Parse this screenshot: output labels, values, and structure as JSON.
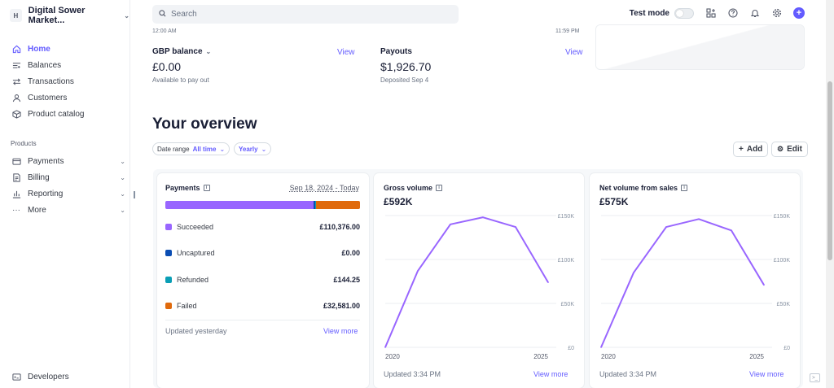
{
  "account": {
    "badge": "H",
    "name": "Digital Sower Market..."
  },
  "sidebar": {
    "primary": [
      {
        "label": "Home",
        "icon": "home-icon",
        "active": true
      },
      {
        "label": "Balances",
        "icon": "balances-icon"
      },
      {
        "label": "Transactions",
        "icon": "transactions-icon"
      },
      {
        "label": "Customers",
        "icon": "customers-icon"
      },
      {
        "label": "Product catalog",
        "icon": "product-catalog-icon"
      }
    ],
    "section_label": "Products",
    "products": [
      {
        "label": "Payments",
        "icon": "payments-icon"
      },
      {
        "label": "Billing",
        "icon": "billing-icon"
      },
      {
        "label": "Reporting",
        "icon": "reporting-icon"
      },
      {
        "label": "More",
        "icon": "more-icon"
      }
    ],
    "developers": "Developers"
  },
  "search": {
    "placeholder": "Search"
  },
  "topbar": {
    "test_mode": "Test mode"
  },
  "summary": {
    "tick_left": "12:00 AM",
    "tick_right": "11:59 PM",
    "gbp": {
      "label": "GBP balance",
      "amount": "£0.00",
      "sub": "Available to pay out",
      "view": "View"
    },
    "payouts": {
      "label": "Payouts",
      "amount": "$1,926.70",
      "sub": "Deposited Sep 4",
      "view": "View"
    }
  },
  "overview": {
    "title": "Your overview",
    "date_range_label": "Date range",
    "date_range_value": "All time",
    "interval": "Yearly",
    "add": "Add",
    "edit": "Edit"
  },
  "payments_card": {
    "title": "Payments",
    "range": "Sep 18, 2024 - Today",
    "rows": [
      {
        "label": "Succeeded",
        "value": "£110,376.00",
        "color": "#9966ff"
      },
      {
        "label": "Uncaptured",
        "value": "£0.00",
        "color": "#0a4db3"
      },
      {
        "label": "Refunded",
        "value": "£144.25",
        "color": "#0a9eb5"
      },
      {
        "label": "Failed",
        "value": "£32,581.00",
        "color": "#e06a0c"
      }
    ],
    "footer": "Updated yesterday",
    "link": "View more"
  },
  "gross_card": {
    "title": "Gross volume",
    "amount": "£592K",
    "footer": "Updated 3:34 PM",
    "link": "View more"
  },
  "net_card": {
    "title": "Net volume from sales",
    "amount": "£575K",
    "footer": "Updated 3:34 PM",
    "link": "View more"
  },
  "chart_data": [
    {
      "type": "line",
      "title": "Gross volume",
      "x_tick_labels": [
        "2020",
        "2025"
      ],
      "y_tick_labels": [
        "£150K",
        "£100K",
        "£50K",
        "£0"
      ],
      "ylim": [
        0,
        150000
      ],
      "series": [
        {
          "values": [
            0,
            87000,
            140000,
            148000,
            137000,
            74000
          ]
        }
      ],
      "color": "#9966ff",
      "grid": true
    },
    {
      "type": "line",
      "title": "Net volume from sales",
      "x_tick_labels": [
        "2020",
        "2025"
      ],
      "y_tick_labels": [
        "£150K",
        "£100K",
        "£50K",
        "£0"
      ],
      "ylim": [
        0,
        150000
      ],
      "series": [
        {
          "values": [
            0,
            85000,
            137000,
            146000,
            133000,
            71000
          ]
        }
      ],
      "color": "#9966ff",
      "grid": true
    }
  ]
}
